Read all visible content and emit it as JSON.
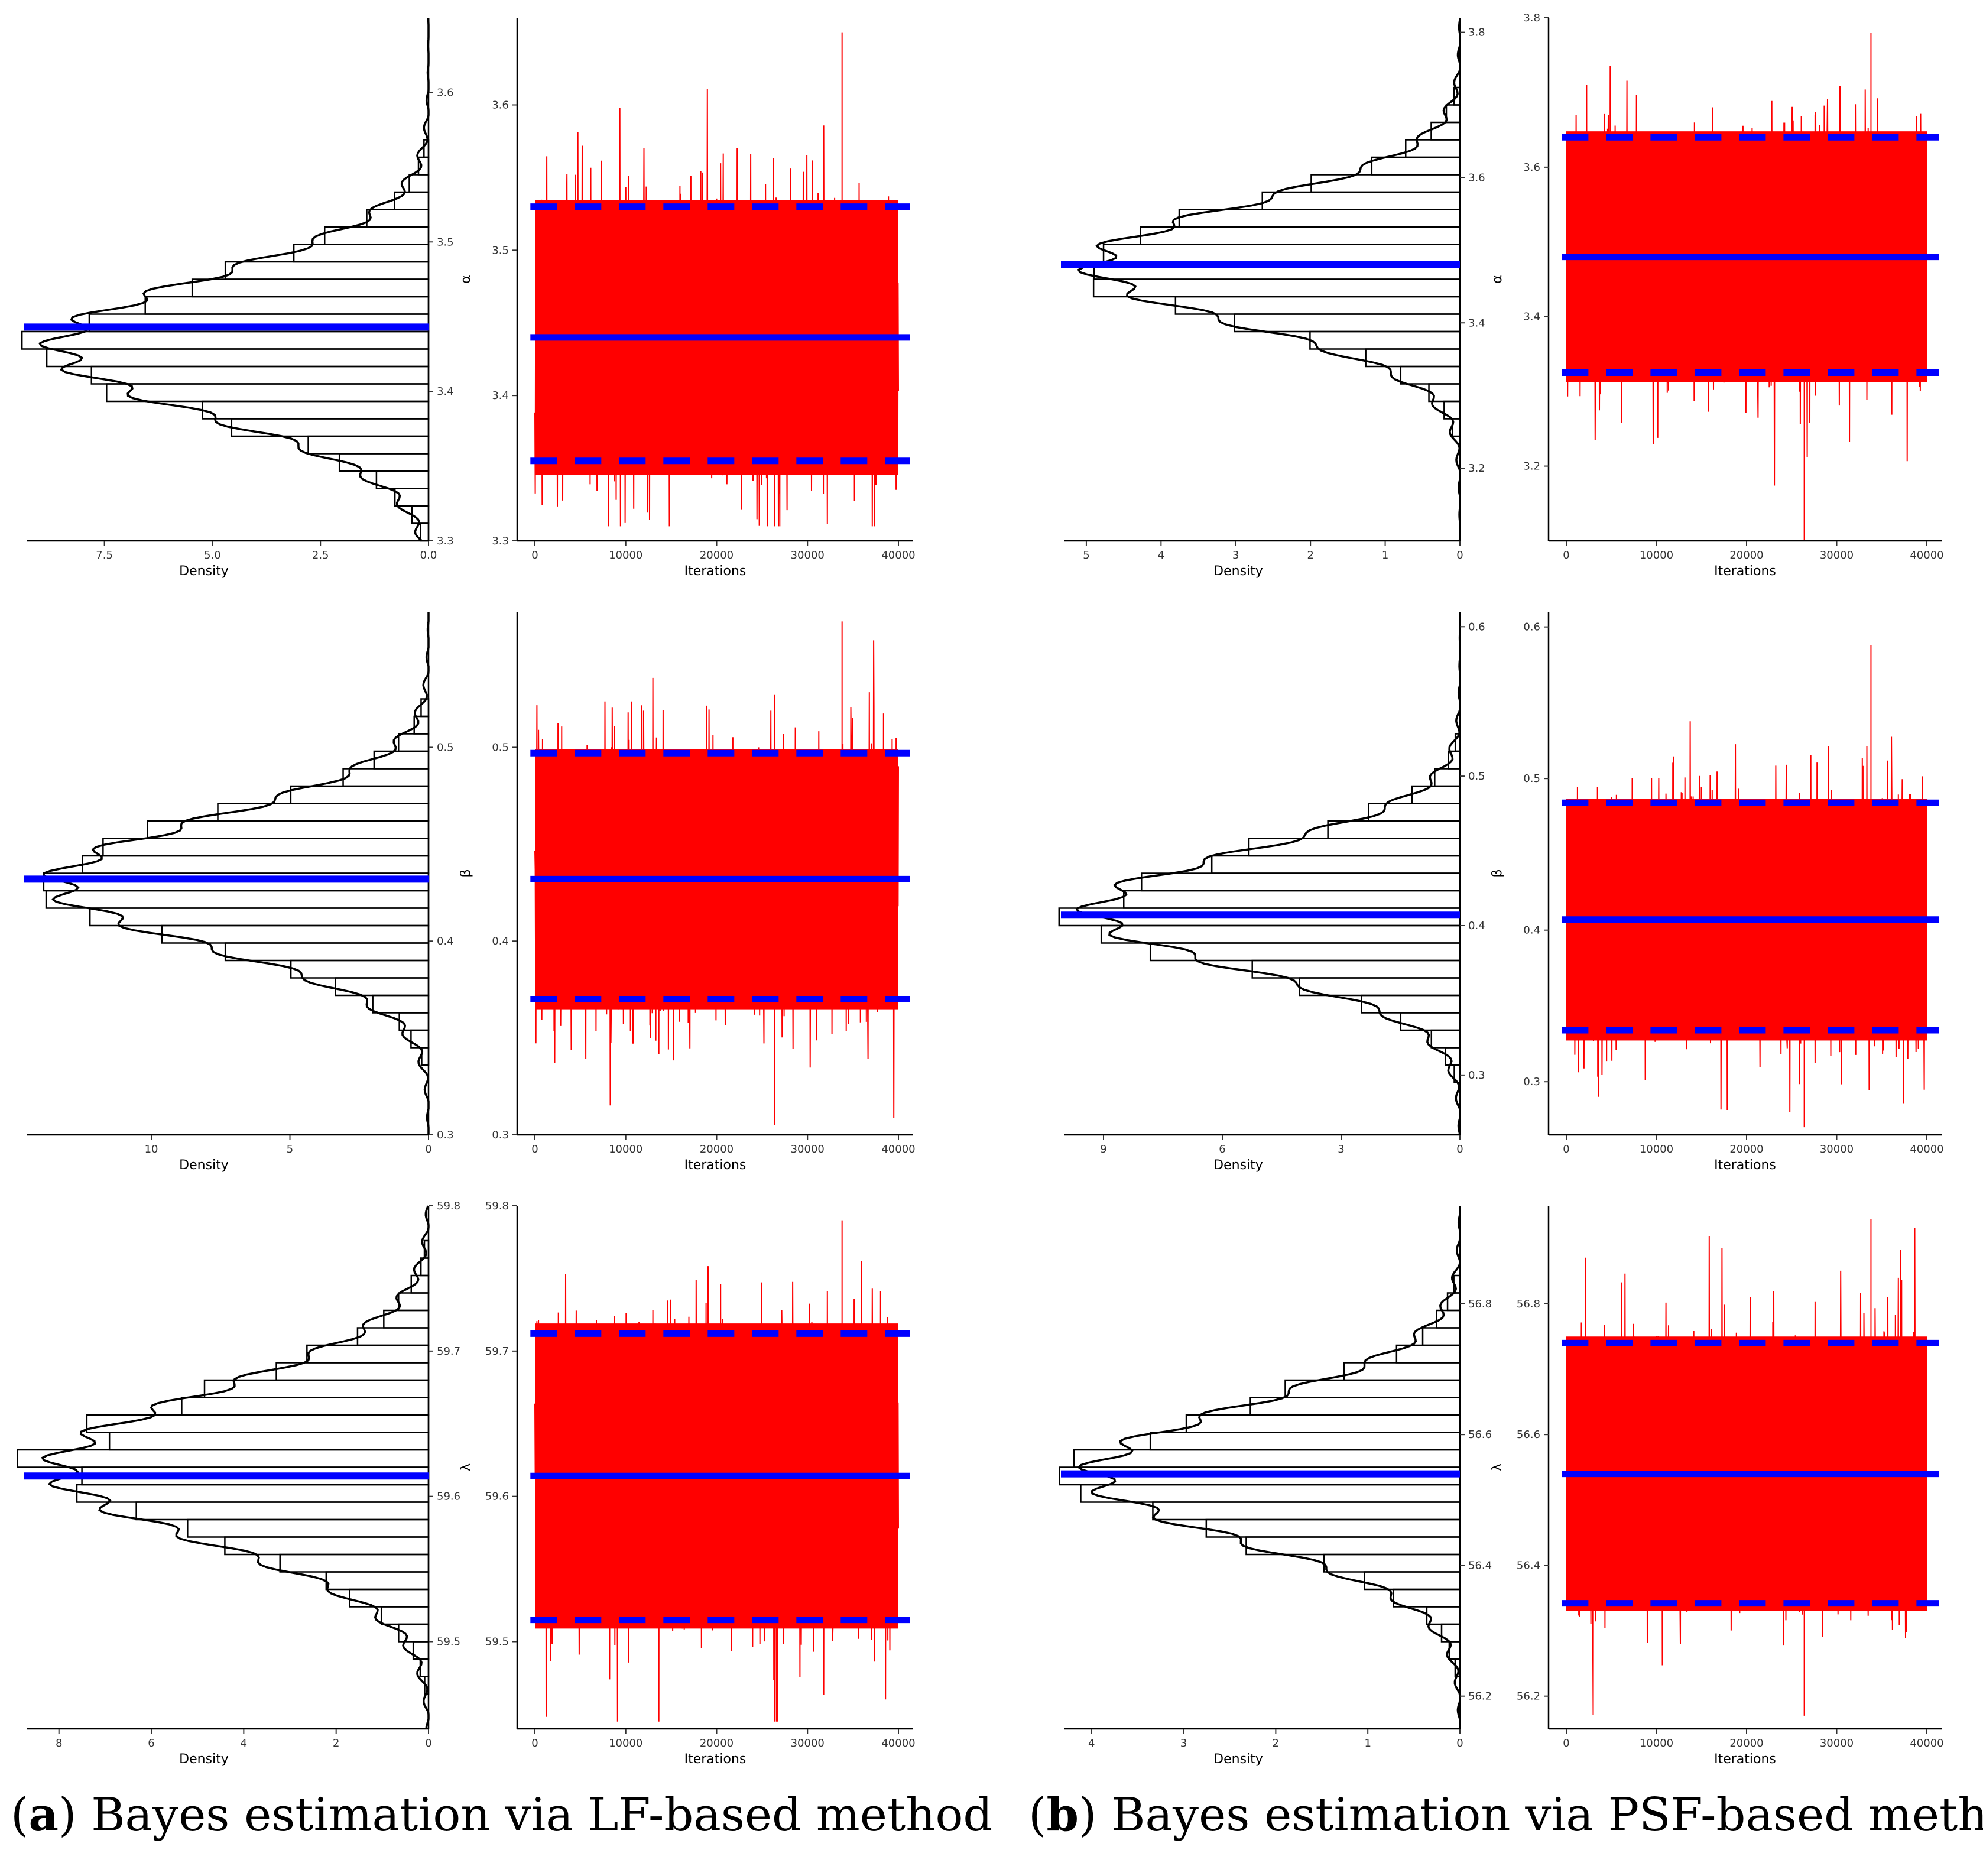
{
  "captions": {
    "a": {
      "label": "a",
      "text": "Bayes estimation via LF-based method"
    },
    "b": {
      "label": "b",
      "text": "Bayes estimation via PSF-based method"
    }
  },
  "colors": {
    "trace": "#ff0000",
    "estimate": "#0000ff",
    "hist": "#000000"
  },
  "chart_data": [
    {
      "type": "histogram",
      "method": "LF",
      "param": "alpha",
      "xlabel": "Density",
      "xlim": [
        0,
        9.3
      ],
      "x_ticks": [
        7.5,
        5.0,
        2.5,
        0.0
      ],
      "ylim": [
        3.3,
        3.65
      ],
      "y_ticks": [
        3.3,
        3.4,
        3.5,
        3.6
      ],
      "mode": 3.43,
      "sd": 0.045,
      "estimate": 3.443
    },
    {
      "type": "trace",
      "method": "LF",
      "param": "alpha",
      "symbol": "α",
      "xlabel": "Iterations",
      "xlim": [
        0,
        40000
      ],
      "x_ticks": [
        0,
        10000,
        20000,
        30000,
        40000
      ],
      "ylim": [
        3.3,
        3.66
      ],
      "y_ticks": [
        3.3,
        3.4,
        3.5,
        3.6
      ],
      "mean": 3.44,
      "sd": 0.045,
      "trace_min": 3.31,
      "trace_max": 3.65,
      "estimate": 3.44,
      "lower": 3.355,
      "upper": 3.53
    },
    {
      "type": "histogram",
      "method": "PSF",
      "param": "alpha",
      "xlabel": "Density",
      "xlim": [
        0,
        5.3
      ],
      "x_ticks": [
        5,
        4,
        3,
        2,
        1,
        0
      ],
      "ylim": [
        3.1,
        3.82
      ],
      "y_ticks": [
        3.2,
        3.4,
        3.6,
        3.8
      ],
      "mode": 3.48,
      "sd": 0.08,
      "estimate": 3.48
    },
    {
      "type": "trace",
      "method": "PSF",
      "param": "alpha",
      "symbol": "α",
      "xlabel": "Iterations",
      "xlim": [
        0,
        40000
      ],
      "x_ticks": [
        0,
        10000,
        20000,
        30000,
        40000
      ],
      "ylim": [
        3.1,
        3.8
      ],
      "y_ticks": [
        3.2,
        3.4,
        3.6,
        3.8
      ],
      "mean": 3.48,
      "sd": 0.08,
      "trace_min": 3.1,
      "trace_max": 3.78,
      "estimate": 3.48,
      "lower": 3.325,
      "upper": 3.64
    },
    {
      "type": "histogram",
      "method": "LF",
      "param": "beta",
      "xlabel": "Density",
      "xlim": [
        0,
        14.5
      ],
      "x_ticks": [
        10,
        5,
        0
      ],
      "ylim": [
        0.3,
        0.57
      ],
      "y_ticks": [
        0.3,
        0.4,
        0.5
      ],
      "mode": 0.43,
      "sd": 0.032,
      "estimate": 0.432
    },
    {
      "type": "trace",
      "method": "LF",
      "param": "beta",
      "symbol": "β",
      "xlabel": "Iterations",
      "xlim": [
        0,
        40000
      ],
      "x_ticks": [
        0,
        10000,
        20000,
        30000,
        40000
      ],
      "ylim": [
        0.3,
        0.57
      ],
      "y_ticks": [
        0.3,
        0.4,
        0.5
      ],
      "mean": 0.432,
      "sd": 0.032,
      "trace_min": 0.305,
      "trace_max": 0.565,
      "estimate": 0.432,
      "lower": 0.37,
      "upper": 0.497
    },
    {
      "type": "histogram",
      "method": "PSF",
      "param": "beta",
      "xlabel": "Density",
      "xlim": [
        0,
        10
      ],
      "x_ticks": [
        9,
        6,
        3,
        0
      ],
      "ylim": [
        0.26,
        0.61
      ],
      "y_ticks": [
        0.3,
        0.4,
        0.5,
        0.6
      ],
      "mode": 0.41,
      "sd": 0.038,
      "estimate": 0.407
    },
    {
      "type": "trace",
      "method": "PSF",
      "param": "beta",
      "symbol": "β",
      "xlabel": "Iterations",
      "xlim": [
        0,
        40000
      ],
      "x_ticks": [
        0,
        10000,
        20000,
        30000,
        40000
      ],
      "ylim": [
        0.265,
        0.61
      ],
      "y_ticks": [
        0.3,
        0.4,
        0.5,
        0.6
      ],
      "mean": 0.407,
      "sd": 0.038,
      "trace_min": 0.27,
      "trace_max": 0.588,
      "estimate": 0.407,
      "lower": 0.334,
      "upper": 0.484
    },
    {
      "type": "histogram",
      "method": "LF",
      "param": "lambda",
      "xlabel": "Density",
      "xlim": [
        0,
        8.7
      ],
      "x_ticks": [
        8,
        6,
        4,
        2,
        0
      ],
      "ylim": [
        59.44,
        59.8
      ],
      "y_ticks": [
        59.5,
        59.6,
        59.7,
        59.8
      ],
      "mode": 59.62,
      "sd": 0.05,
      "estimate": 59.614
    },
    {
      "type": "trace",
      "method": "LF",
      "param": "lambda",
      "symbol": "λ",
      "xlabel": "Iterations",
      "xlim": [
        0,
        40000
      ],
      "x_ticks": [
        0,
        10000,
        20000,
        30000,
        40000
      ],
      "ylim": [
        59.44,
        59.8
      ],
      "y_ticks": [
        59.5,
        59.6,
        59.7,
        59.8
      ],
      "mean": 59.614,
      "sd": 0.05,
      "trace_min": 59.445,
      "trace_max": 59.79,
      "estimate": 59.614,
      "lower": 59.515,
      "upper": 59.712
    },
    {
      "type": "histogram",
      "method": "PSF",
      "param": "lambda",
      "xlabel": "Density",
      "xlim": [
        0,
        4.3
      ],
      "x_ticks": [
        4,
        3,
        2,
        1,
        0
      ],
      "ylim": [
        56.15,
        56.95
      ],
      "y_ticks": [
        56.2,
        56.4,
        56.6,
        56.8
      ],
      "mode": 56.54,
      "sd": 0.1,
      "estimate": 56.54
    },
    {
      "type": "trace",
      "method": "PSF",
      "param": "lambda",
      "symbol": "λ",
      "xlabel": "Iterations",
      "xlim": [
        0,
        40000
      ],
      "x_ticks": [
        0,
        10000,
        20000,
        30000,
        40000
      ],
      "ylim": [
        56.15,
        56.95
      ],
      "y_ticks": [
        56.2,
        56.4,
        56.6,
        56.8
      ],
      "mean": 56.54,
      "sd": 0.1,
      "trace_min": 56.17,
      "trace_max": 56.93,
      "estimate": 56.54,
      "lower": 56.342,
      "upper": 56.74
    }
  ]
}
